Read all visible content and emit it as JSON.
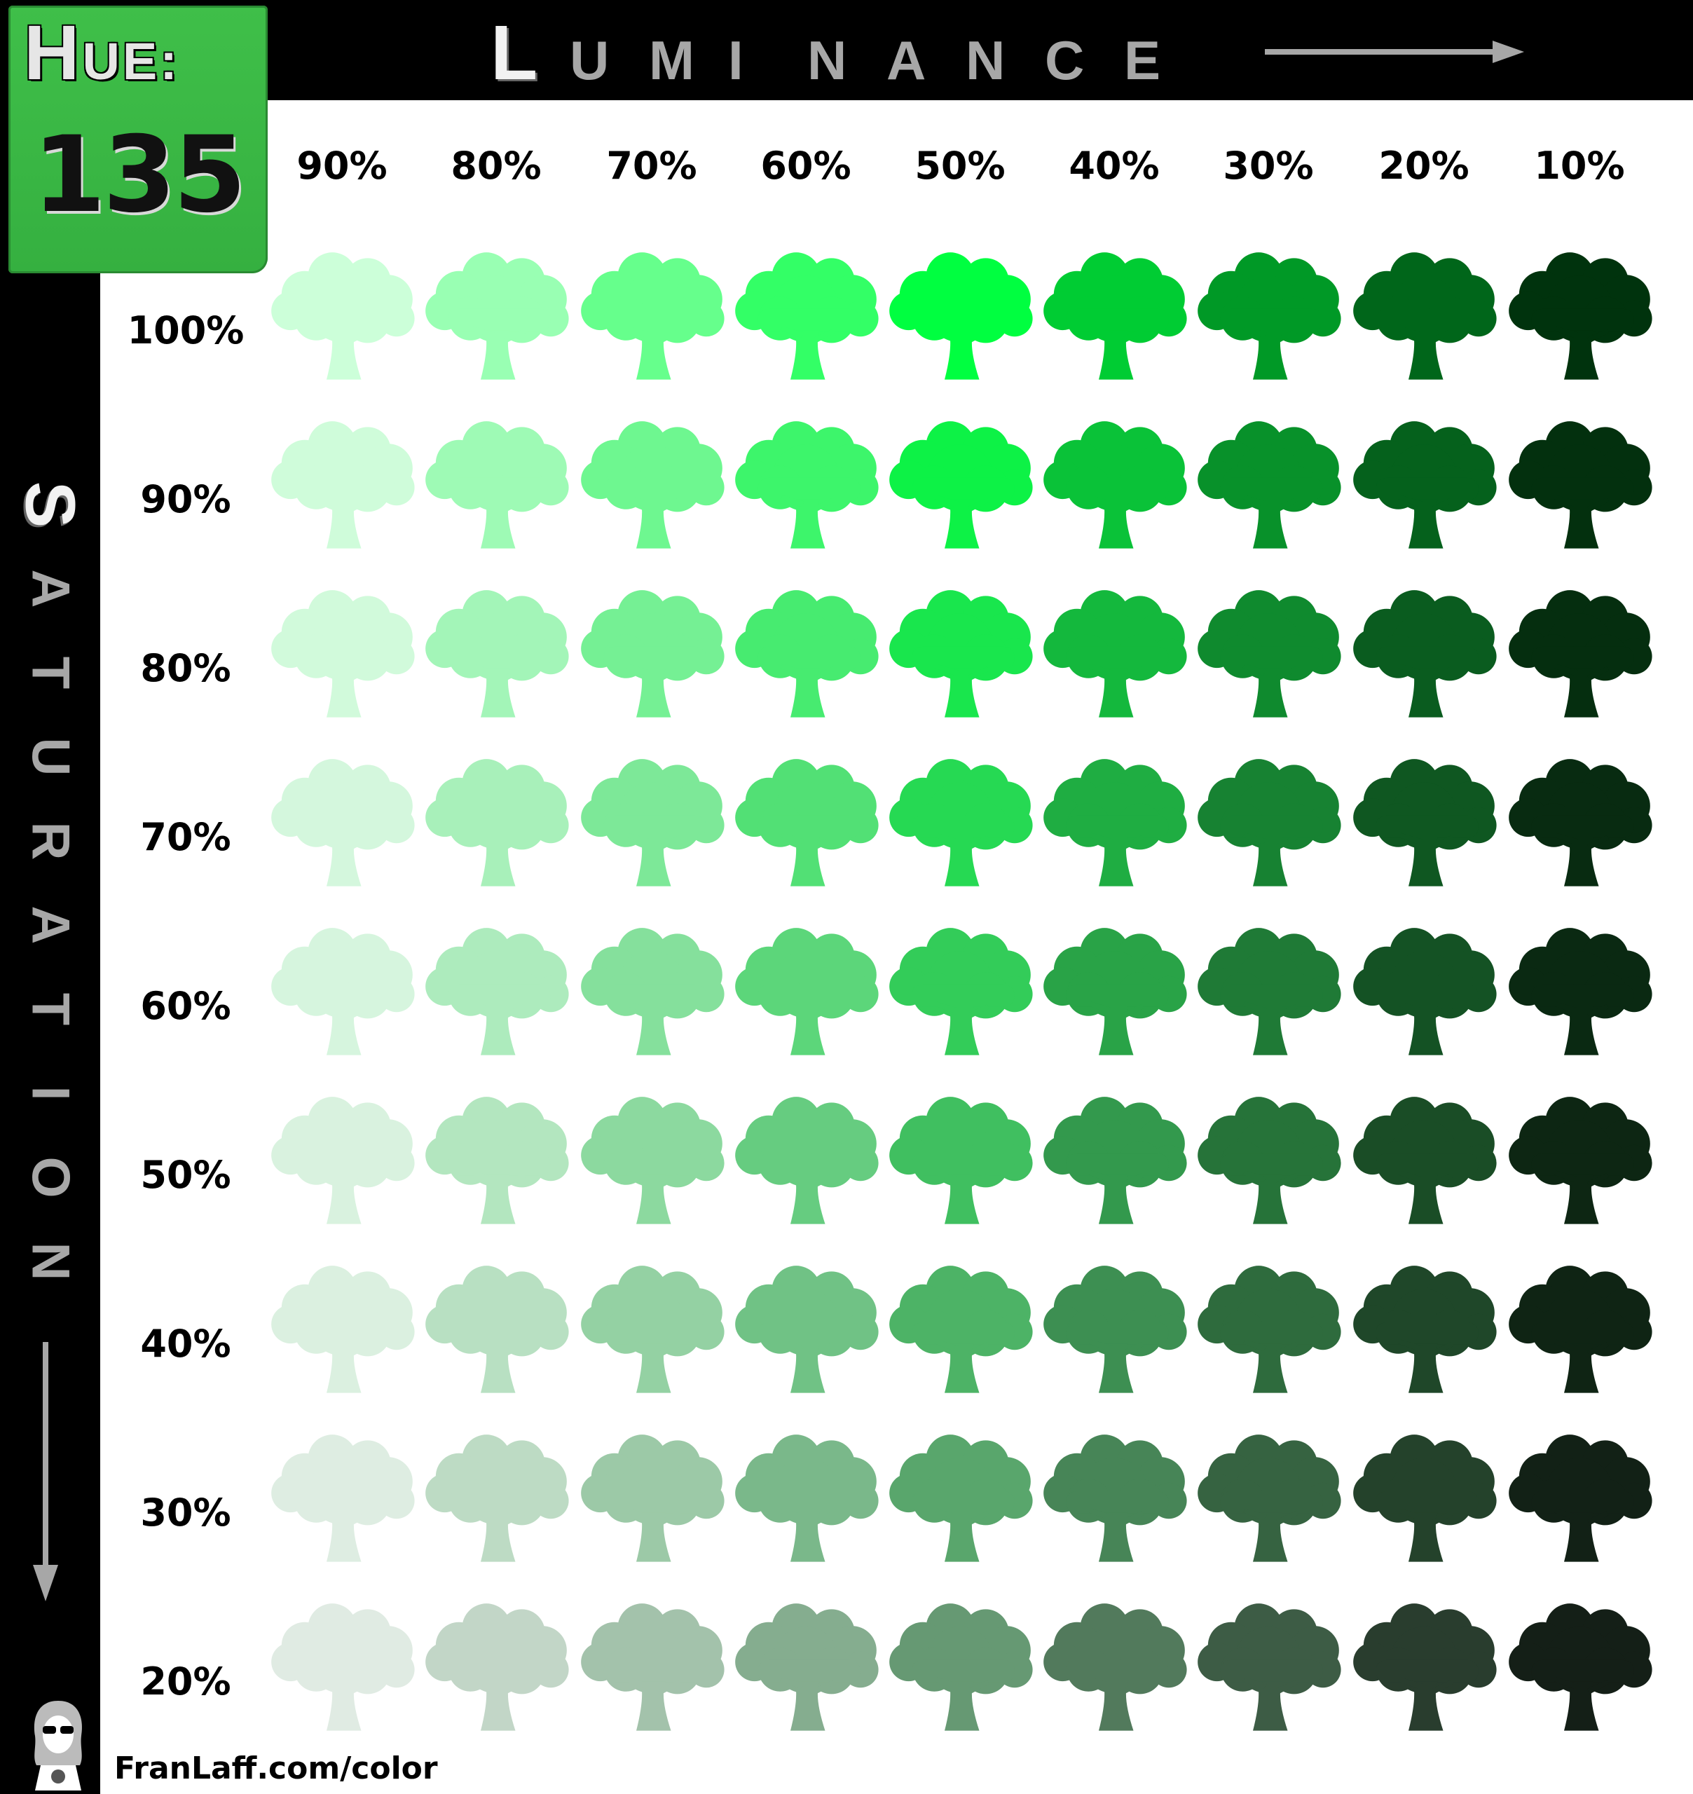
{
  "hue": {
    "label_first": "H",
    "label_rest": "UE:",
    "value": "135"
  },
  "luminance": {
    "title_letters": [
      "L",
      "U",
      "M",
      "I",
      "N",
      "A",
      "N",
      "C",
      "E"
    ],
    "levels": [
      "90%",
      "80%",
      "70%",
      "60%",
      "50%",
      "40%",
      "30%",
      "20%",
      "10%"
    ]
  },
  "saturation": {
    "title_letters": [
      "S",
      "A",
      "T",
      "U",
      "R",
      "A",
      "T",
      "I",
      "O",
      "N"
    ],
    "levels": [
      "100%",
      "90%",
      "80%",
      "70%",
      "60%",
      "50%",
      "40%",
      "30%",
      "20%"
    ]
  },
  "credit": "FranLaff.com/color",
  "colors": {
    "bar": "#000000",
    "hue_box": "#3fbf49",
    "title_grey": "#a7a7a7",
    "title_white": "#f2f2f2"
  },
  "icon": "tree-icon"
}
